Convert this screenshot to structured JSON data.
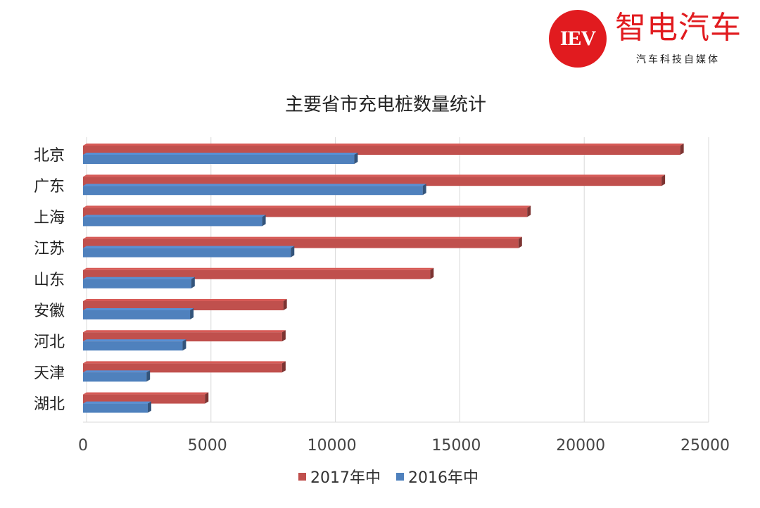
{
  "brand": {
    "badge_text": "IEV",
    "name": "智电汽车",
    "tagline": "汽车科技自媒体",
    "color": "#e11b1f"
  },
  "chart_data": {
    "type": "bar",
    "orientation": "horizontal",
    "title": "主要省市充电桩数量统计",
    "categories": [
      "北京",
      "广东",
      "上海",
      "江苏",
      "山东",
      "安徽",
      "河北",
      "天津",
      "湖北"
    ],
    "series": [
      {
        "name": "2017年中",
        "color": "#c0504d",
        "values": [
          24000,
          23250,
          17850,
          17500,
          13950,
          8050,
          8000,
          8000,
          4900
        ]
      },
      {
        "name": "2016年中",
        "color": "#4f81bd",
        "values": [
          10900,
          13650,
          7200,
          8350,
          4350,
          4300,
          4000,
          2550,
          2600
        ]
      }
    ],
    "xlim": [
      0,
      25000
    ],
    "x_ticks": [
      0,
      5000,
      10000,
      15000,
      20000,
      25000
    ],
    "grid": true,
    "style": "3d",
    "legend_position": "bottom"
  }
}
